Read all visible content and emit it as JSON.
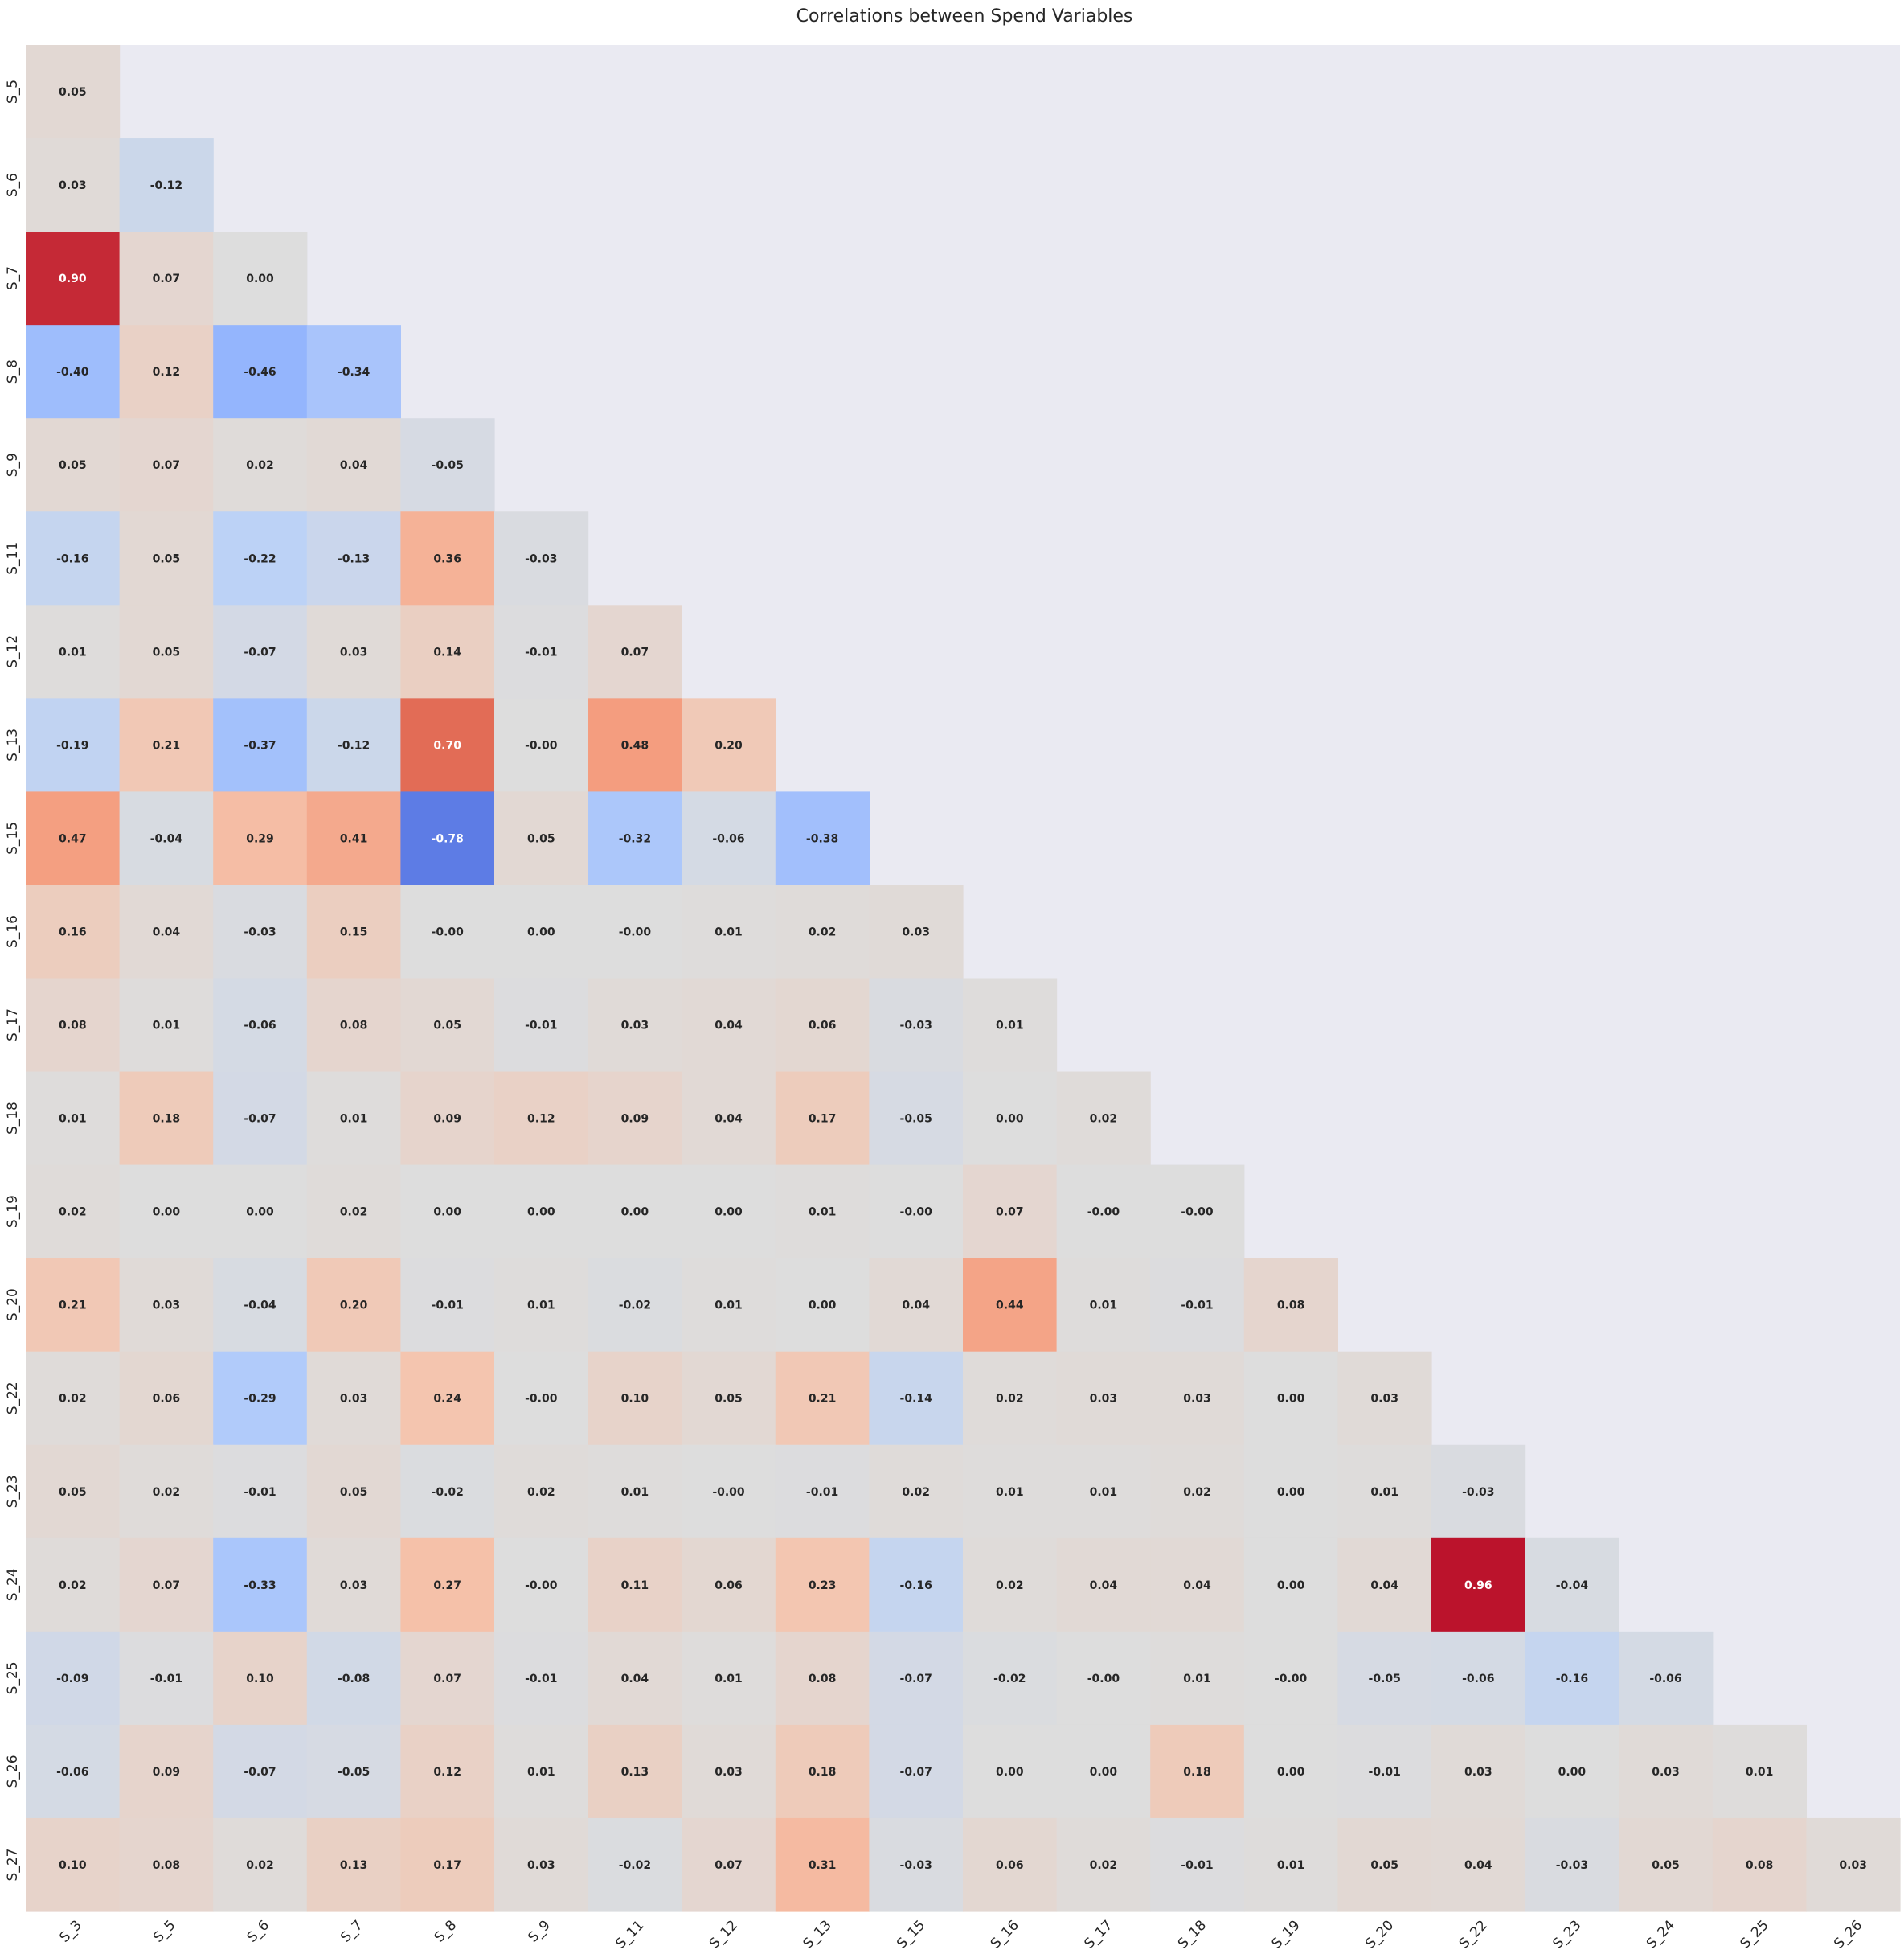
{
  "chart_data": {
    "type": "heatmap",
    "title": "Correlations between Spend Variables",
    "xlabel": "",
    "ylabel": "",
    "colormap": "coolwarm",
    "vmin": -1,
    "vmax": 1,
    "mask": "upper-triangle",
    "annotation_format": "0.00",
    "colorbar": false,
    "grid": false,
    "background_color": "#eaeaf2",
    "x_labels": [
      "S_3",
      "S_5",
      "S_6",
      "S_7",
      "S_8",
      "S_9",
      "S_11",
      "S_12",
      "S_13",
      "S_15",
      "S_16",
      "S_17",
      "S_18",
      "S_19",
      "S_20",
      "S_22",
      "S_23",
      "S_24",
      "S_25",
      "S_26"
    ],
    "y_labels": [
      "S_5",
      "S_6",
      "S_7",
      "S_8",
      "S_9",
      "S_11",
      "S_12",
      "S_13",
      "S_15",
      "S_16",
      "S_17",
      "S_18",
      "S_19",
      "S_20",
      "S_22",
      "S_23",
      "S_24",
      "S_25",
      "S_26",
      "S_27"
    ],
    "rows": [
      {
        "row": "S_5",
        "values": [
          "0.05"
        ]
      },
      {
        "row": "S_6",
        "values": [
          "0.03",
          "-0.12"
        ]
      },
      {
        "row": "S_7",
        "values": [
          "0.90",
          "0.07",
          "0.00"
        ]
      },
      {
        "row": "S_8",
        "values": [
          "-0.40",
          "0.12",
          "-0.46",
          "-0.34"
        ]
      },
      {
        "row": "S_9",
        "values": [
          "0.05",
          "0.07",
          "0.02",
          "0.04",
          "-0.05"
        ]
      },
      {
        "row": "S_11",
        "values": [
          "-0.16",
          "0.05",
          "-0.22",
          "-0.13",
          "0.36",
          "-0.03"
        ]
      },
      {
        "row": "S_12",
        "values": [
          "0.01",
          "0.05",
          "-0.07",
          "0.03",
          "0.14",
          "-0.01",
          "0.07"
        ]
      },
      {
        "row": "S_13",
        "values": [
          "-0.19",
          "0.21",
          "-0.37",
          "-0.12",
          "0.70",
          "-0.00",
          "0.48",
          "0.20"
        ]
      },
      {
        "row": "S_15",
        "values": [
          "0.47",
          "-0.04",
          "0.29",
          "0.41",
          "-0.78",
          "0.05",
          "-0.32",
          "-0.06",
          "-0.38"
        ]
      },
      {
        "row": "S_16",
        "values": [
          "0.16",
          "0.04",
          "-0.03",
          "0.15",
          "-0.00",
          "0.00",
          "-0.00",
          "0.01",
          "0.02",
          "0.03"
        ]
      },
      {
        "row": "S_17",
        "values": [
          "0.08",
          "0.01",
          "-0.06",
          "0.08",
          "0.05",
          "-0.01",
          "0.03",
          "0.04",
          "0.06",
          "-0.03",
          "0.01"
        ]
      },
      {
        "row": "S_18",
        "values": [
          "0.01",
          "0.18",
          "-0.07",
          "0.01",
          "0.09",
          "0.12",
          "0.09",
          "0.04",
          "0.17",
          "-0.05",
          "0.00",
          "0.02"
        ]
      },
      {
        "row": "S_19",
        "values": [
          "0.02",
          "0.00",
          "0.00",
          "0.02",
          "0.00",
          "0.00",
          "0.00",
          "0.00",
          "0.01",
          "-0.00",
          "0.07",
          "-0.00",
          "-0.00"
        ]
      },
      {
        "row": "S_20",
        "values": [
          "0.21",
          "0.03",
          "-0.04",
          "0.20",
          "-0.01",
          "0.01",
          "-0.02",
          "0.01",
          "0.00",
          "0.04",
          "0.44",
          "0.01",
          "-0.01",
          "0.08"
        ]
      },
      {
        "row": "S_22",
        "values": [
          "0.02",
          "0.06",
          "-0.29",
          "0.03",
          "0.24",
          "-0.00",
          "0.10",
          "0.05",
          "0.21",
          "-0.14",
          "0.02",
          "0.03",
          "0.03",
          "0.00",
          "0.03"
        ]
      },
      {
        "row": "S_23",
        "values": [
          "0.05",
          "0.02",
          "-0.01",
          "0.05",
          "-0.02",
          "0.02",
          "0.01",
          "-0.00",
          "-0.01",
          "0.02",
          "0.01",
          "0.01",
          "0.02",
          "0.00",
          "0.01",
          "-0.03"
        ]
      },
      {
        "row": "S_24",
        "values": [
          "0.02",
          "0.07",
          "-0.33",
          "0.03",
          "0.27",
          "-0.00",
          "0.11",
          "0.06",
          "0.23",
          "-0.16",
          "0.02",
          "0.04",
          "0.04",
          "0.00",
          "0.04",
          "0.96",
          "-0.04"
        ]
      },
      {
        "row": "S_25",
        "values": [
          "-0.09",
          "-0.01",
          "0.10",
          "-0.08",
          "0.07",
          "-0.01",
          "0.04",
          "0.01",
          "0.08",
          "-0.07",
          "-0.02",
          "-0.00",
          "0.01",
          "-0.00",
          "-0.05",
          "-0.06",
          "-0.16",
          "-0.06"
        ]
      },
      {
        "row": "S_26",
        "values": [
          "-0.06",
          "0.09",
          "-0.07",
          "-0.05",
          "0.12",
          "0.01",
          "0.13",
          "0.03",
          "0.18",
          "-0.07",
          "0.00",
          "0.00",
          "0.18",
          "0.00",
          "-0.01",
          "0.03",
          "0.00",
          "0.03",
          "0.01"
        ]
      },
      {
        "row": "S_27",
        "values": [
          "0.10",
          "0.08",
          "0.02",
          "0.13",
          "0.17",
          "0.03",
          "-0.02",
          "0.07",
          "0.31",
          "-0.03",
          "0.06",
          "0.02",
          "-0.01",
          "0.01",
          "0.05",
          "0.04",
          "-0.03",
          "0.05",
          "0.08",
          "0.03"
        ]
      }
    ]
  }
}
